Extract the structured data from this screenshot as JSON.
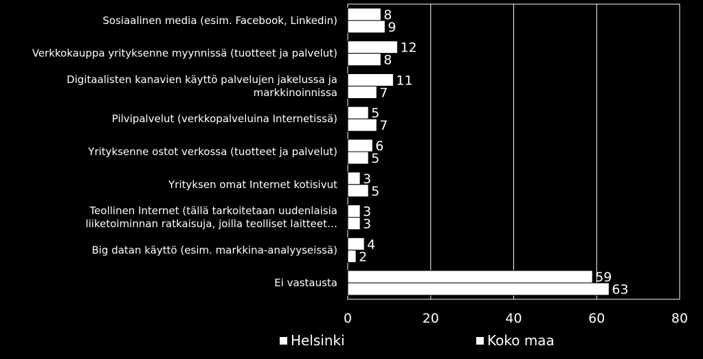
{
  "chart_data": {
    "type": "bar",
    "orientation": "horizontal",
    "categories": [
      [
        "Sosiaalinen media (esim. Facebook, Linkedin)"
      ],
      [
        "Verkkokauppa yrityksenne myynnissä (tuotteet ja palvelut)"
      ],
      [
        "Digitaalisten kanavien käyttö palvelujen jakelussa ja",
        "markkinoinnissa"
      ],
      [
        "Pilvipalvelut  (verkkopalveluina Internetissä)"
      ],
      [
        "Yrityksenne ostot verkossa (tuotteet ja palvelut)"
      ],
      [
        "Yrityksen omat Internet kotisivut"
      ],
      [
        "Teollinen Internet (tällä tarkoitetaan uudenlaisia",
        "liiketoiminnan ratkaisuja, joilla teolliset laitteet…"
      ],
      [
        "Big datan käyttö (esim. markkina-analyyseissä)"
      ],
      [
        "Ei vastausta"
      ]
    ],
    "series": [
      {
        "name": "Helsinki",
        "values": [
          8,
          12,
          11,
          5,
          6,
          3,
          3,
          4,
          59
        ]
      },
      {
        "name": "Koko maa",
        "values": [
          9,
          8,
          7,
          7,
          5,
          5,
          3,
          2,
          63
        ]
      }
    ],
    "xlim": [
      0,
      80
    ],
    "xticks": [
      "0",
      "20",
      "40",
      "60",
      "80"
    ],
    "grid": true,
    "legend_position": "bottom",
    "colors": {
      "background": "#000000",
      "bars": "#ffffff",
      "bar_outline": "#000000",
      "grid": "#ffffff",
      "text": "#ffffff"
    }
  }
}
